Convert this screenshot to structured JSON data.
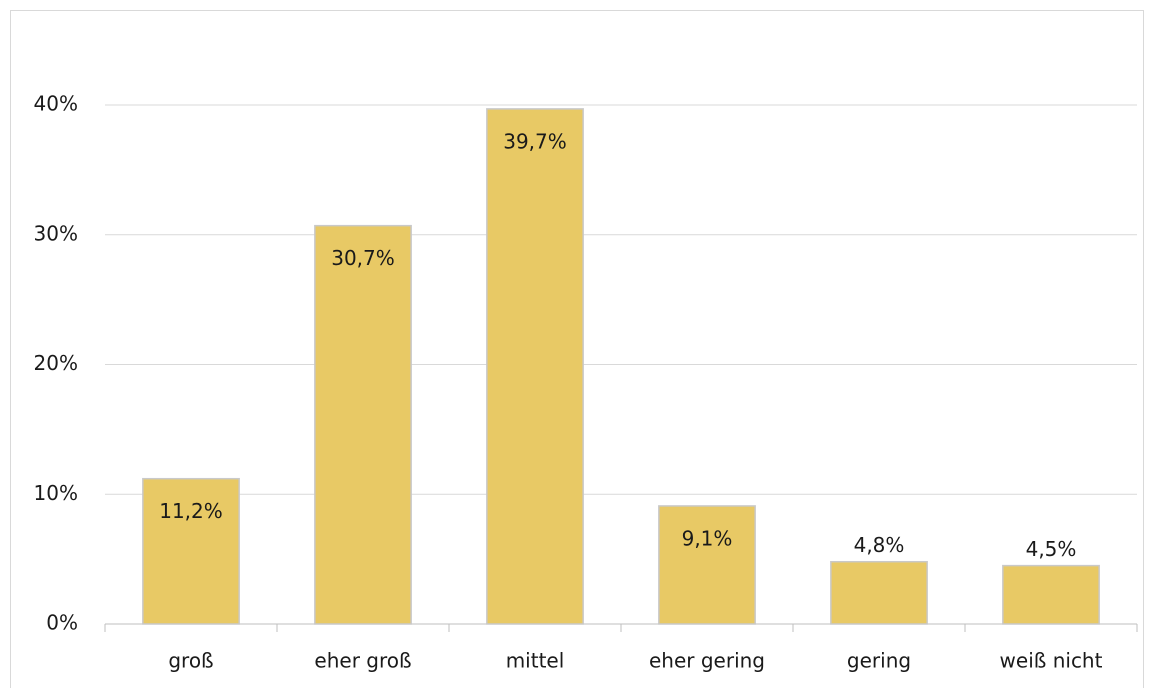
{
  "chart_data": {
    "type": "bar",
    "categories": [
      "groß",
      "eher groß",
      "mittel",
      "eher gering",
      "gering",
      "weiß nicht"
    ],
    "values": [
      11.2,
      30.7,
      39.7,
      9.1,
      4.8,
      4.5
    ],
    "value_labels": [
      "11,2%",
      "30,7%",
      "39,7%",
      "9,1%",
      "4,8%",
      "4,5%"
    ],
    "color": "#e8c965",
    "ylim": [
      0,
      40
    ],
    "yticks": [
      {
        "value": 0,
        "label": "0%"
      },
      {
        "value": 10,
        "label": "10%"
      },
      {
        "value": 20,
        "label": "20%"
      },
      {
        "value": 30,
        "label": "30%"
      },
      {
        "value": 40,
        "label": "40%"
      }
    ],
    "grid": true
  }
}
